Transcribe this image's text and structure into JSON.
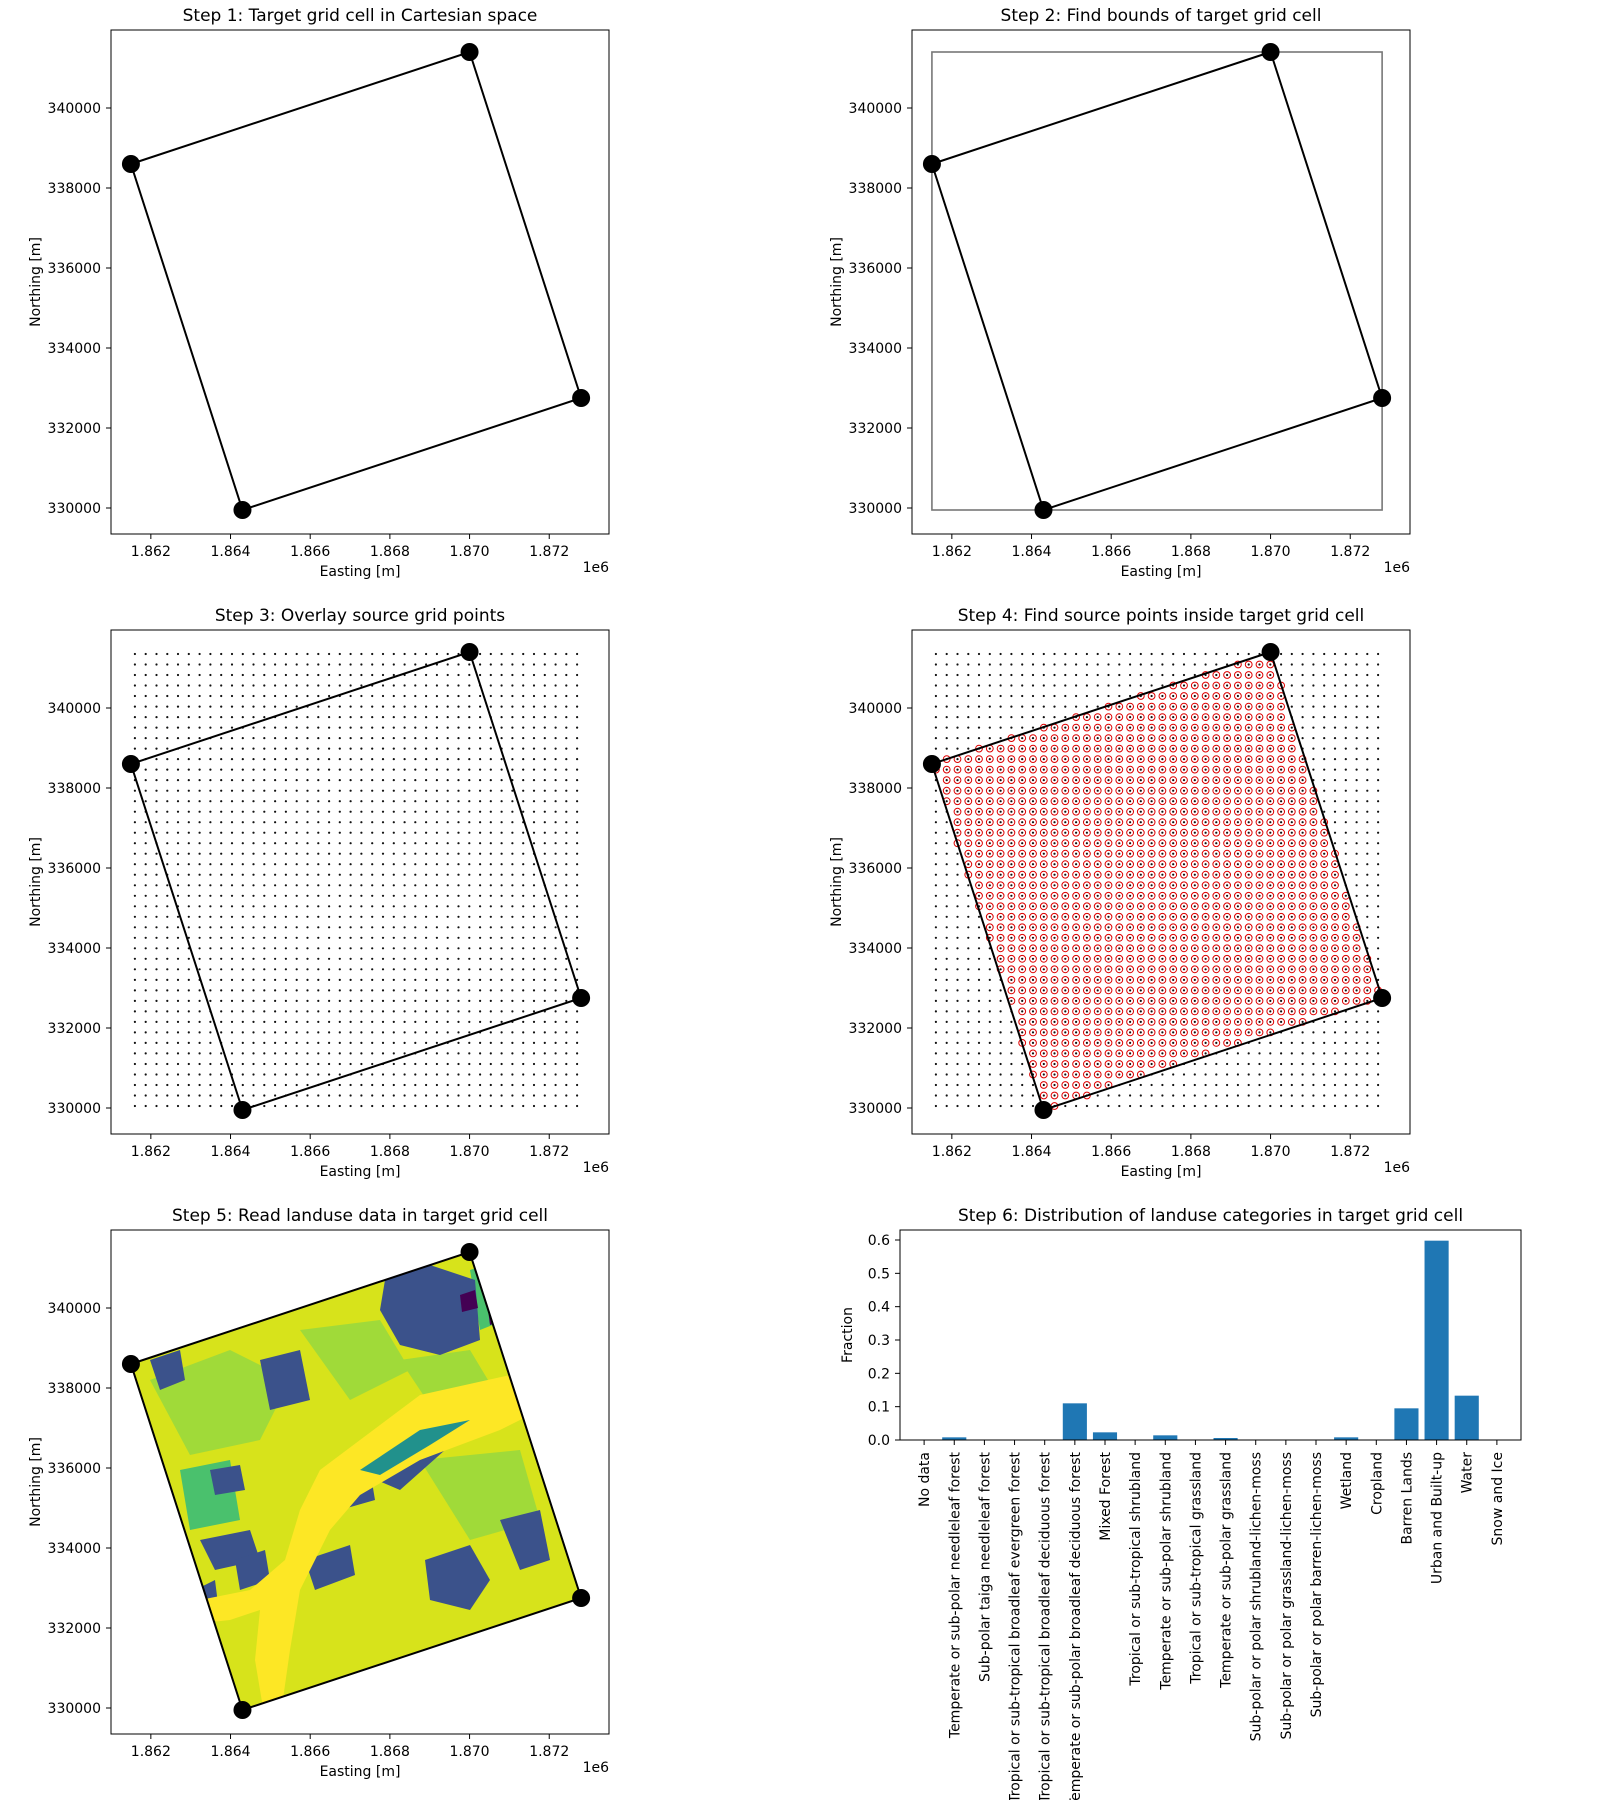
{
  "chart_data": [
    {
      "type": "line",
      "title": "Step 1: Target grid cell in Cartesian space",
      "xlabel": "Easting [m]",
      "ylabel": "Northing [m]",
      "x_offset_label": "1e6",
      "xlim": [
        1.861,
        1.8735
      ],
      "ylim": [
        329350,
        341950
      ],
      "xticks": [
        "1.862",
        "1.864",
        "1.866",
        "1.868",
        "1.870",
        "1.872"
      ],
      "yticks": [
        "330000",
        "332000",
        "334000",
        "336000",
        "338000",
        "340000"
      ],
      "series": [
        {
          "polygon": [
            [
              1.8615,
              338600
            ],
            [
              1.87,
              341400
            ],
            [
              1.8728,
              332750
            ],
            [
              1.8643,
              329950
            ]
          ]
        }
      ],
      "markers": [
        [
          1.8615,
          338600
        ],
        [
          1.87,
          341400
        ],
        [
          1.8728,
          332750
        ],
        [
          1.8643,
          329950
        ]
      ],
      "grid": false
    },
    {
      "type": "line",
      "title": "Step 2: Find bounds of target grid cell",
      "xlabel": "Easting [m]",
      "ylabel": "Northing [m]",
      "x_offset_label": "1e6",
      "xlim": [
        1.861,
        1.8735
      ],
      "ylim": [
        329350,
        341950
      ],
      "xticks": [
        "1.862",
        "1.864",
        "1.866",
        "1.868",
        "1.870",
        "1.872"
      ],
      "yticks": [
        "330000",
        "332000",
        "334000",
        "336000",
        "338000",
        "340000"
      ],
      "series": [
        {
          "polygon": [
            [
              1.8615,
              338600
            ],
            [
              1.87,
              341400
            ],
            [
              1.8728,
              332750
            ],
            [
              1.8643,
              329950
            ]
          ]
        }
      ],
      "bounds": [
        [
          1.8615,
          329950
        ],
        [
          1.8728,
          341400
        ]
      ],
      "markers": [
        [
          1.8615,
          338600
        ],
        [
          1.87,
          341400
        ],
        [
          1.8728,
          332750
        ],
        [
          1.8643,
          329950
        ]
      ],
      "grid": false
    },
    {
      "type": "scatter",
      "title": "Step 3: Overlay source grid points",
      "xlabel": "Easting [m]",
      "ylabel": "Northing [m]",
      "x_offset_label": "1e6",
      "xlim": [
        1.861,
        1.8735
      ],
      "ylim": [
        329350,
        341950
      ],
      "xticks": [
        "1.862",
        "1.864",
        "1.866",
        "1.868",
        "1.870",
        "1.872"
      ],
      "yticks": [
        "330000",
        "332000",
        "334000",
        "336000",
        "338000",
        "340000"
      ],
      "source_grid": {
        "x_start": 1.8616,
        "x_end": 1.8727,
        "x_count": 42,
        "y_start": 330050,
        "y_end": 341350,
        "y_count": 44
      },
      "series": [
        {
          "polygon": [
            [
              1.8615,
              338600
            ],
            [
              1.87,
              341400
            ],
            [
              1.8728,
              332750
            ],
            [
              1.8643,
              329950
            ]
          ]
        }
      ],
      "markers": [
        [
          1.8615,
          338600
        ],
        [
          1.87,
          341400
        ],
        [
          1.8728,
          332750
        ],
        [
          1.8643,
          329950
        ]
      ],
      "grid": false
    },
    {
      "type": "scatter",
      "title": "Step 4: Find source points inside target grid cell",
      "xlabel": "Easting [m]",
      "ylabel": "Northing [m]",
      "x_offset_label": "1e6",
      "xlim": [
        1.861,
        1.8735
      ],
      "ylim": [
        329350,
        341950
      ],
      "xticks": [
        "1.862",
        "1.864",
        "1.866",
        "1.868",
        "1.870",
        "1.872"
      ],
      "yticks": [
        "330000",
        "332000",
        "334000",
        "336000",
        "338000",
        "340000"
      ],
      "source_grid": {
        "x_start": 1.8616,
        "x_end": 1.8727,
        "x_count": 42,
        "y_start": 330050,
        "y_end": 341350,
        "y_count": 44
      },
      "series": [
        {
          "polygon": [
            [
              1.8615,
              338600
            ],
            [
              1.87,
              341400
            ],
            [
              1.8728,
              332750
            ],
            [
              1.8643,
              329950
            ]
          ]
        }
      ],
      "markers": [
        [
          1.8615,
          338600
        ],
        [
          1.87,
          341400
        ],
        [
          1.8728,
          332750
        ],
        [
          1.8643,
          329950
        ]
      ],
      "highlight_color": "#dd0000",
      "grid": false
    },
    {
      "type": "heatmap",
      "title": "Step 5: Read landuse data in target grid cell",
      "xlabel": "Easting [m]",
      "ylabel": "Northing [m]",
      "x_offset_label": "1e6",
      "xlim": [
        1.861,
        1.8735
      ],
      "ylim": [
        329350,
        341950
      ],
      "xticks": [
        "1.862",
        "1.864",
        "1.866",
        "1.868",
        "1.870",
        "1.872"
      ],
      "yticks": [
        "330000",
        "332000",
        "334000",
        "336000",
        "338000",
        "340000"
      ],
      "series": [
        {
          "polygon": [
            [
              1.8615,
              338600
            ],
            [
              1.87,
              341400
            ],
            [
              1.8728,
              332750
            ],
            [
              1.8643,
              329950
            ]
          ]
        }
      ],
      "markers": [
        [
          1.8615,
          338600
        ],
        [
          1.87,
          341400
        ],
        [
          1.8728,
          332750
        ],
        [
          1.8643,
          329950
        ]
      ],
      "colors": {
        "urban": "#d7e31b",
        "water": "#fde725",
        "forest": "#3b528b",
        "grass": "#a0da39",
        "shrub": "#4ac16d",
        "wetland": "#21918c",
        "dark": "#440154"
      },
      "grid": false
    },
    {
      "type": "bar",
      "title": "Step 6: Distribution of landuse categories in target grid cell",
      "xlabel": "",
      "ylabel": "Fraction",
      "ylim": [
        0,
        0.63
      ],
      "yticks": [
        "0.0",
        "0.1",
        "0.2",
        "0.3",
        "0.4",
        "0.5",
        "0.6"
      ],
      "categories": [
        "No data",
        "Temperate or sub-polar needleleaf forest",
        "Sub-polar taiga needleleaf forest",
        "Tropical or sub-tropical broadleaf evergreen forest",
        "Tropical or sub-tropical broadleaf deciduous forest",
        "Temperate or sub-polar broadleaf deciduous forest",
        "Mixed Forest",
        "Tropical or sub-tropical shrubland",
        "Temperate or sub-polar shrubland",
        "Tropical or sub-tropical grassland",
        "Temperate or sub-polar grassland",
        "Sub-polar or polar shrubland-lichen-moss",
        "Sub-polar or polar grassland-lichen-moss",
        "Sub-polar or polar barren-lichen-moss",
        "Wetland",
        "Cropland",
        "Barren Lands",
        "Urban and Built-up",
        "Water",
        "Snow and Ice"
      ],
      "values": [
        0.0,
        0.008,
        0.0,
        0.0,
        0.0,
        0.11,
        0.023,
        0.0,
        0.014,
        0.0,
        0.006,
        0.0,
        0.0,
        0.0,
        0.008,
        0.0,
        0.095,
        0.598,
        0.133,
        0.0
      ],
      "bar_color": "#1f77b4",
      "grid": false
    }
  ]
}
